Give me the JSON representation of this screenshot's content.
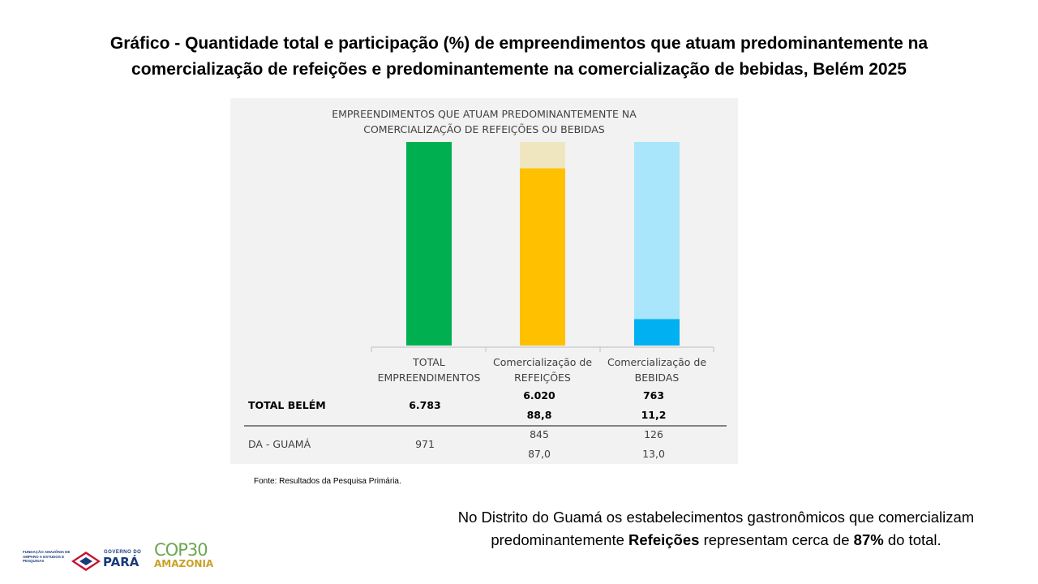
{
  "slide": {
    "title_line1": "Gráfico - Quantidade total e participação (%) de empreendimentos que atuam predominantemente na",
    "title_line2": "comercialização de refeições e predominantemente na comercialização de bebidas, Belém 2025",
    "source": "Fonte: Resultados da Pesquisa Primária.",
    "note_part1": "No Distrito do Guamá os estabelecimentos gastronômicos que comercializam predominantemente ",
    "note_bold1": "Refeições",
    "note_part2": " representam cerca de ",
    "note_bold2": "87%",
    "note_part3": " do total."
  },
  "logos": {
    "fapespa": "FUNDAÇÃO AMAZÔNIA DE AMPARO A ESTUDOS E PESQUISAS",
    "gov_label": "GOVERNO DO",
    "gov_state": "PARÁ",
    "cop_top": "COP30",
    "cop_bottom": "AMAZONIA"
  },
  "chart_data": {
    "type": "bar",
    "title_line1": "EMPREENDIMENTOS QUE ATUAM PREDOMINANTEMENTE NA",
    "title_line2": "COMERCIALIZAÇÃO DE REFEIÇÕES OU BEBIDAS",
    "categories": [
      [
        "TOTAL",
        "EMPREENDIMENTOS"
      ],
      [
        "Comercialização de",
        "REFEIÇÕES"
      ],
      [
        "Comercialização de",
        "BEBIDAS"
      ]
    ],
    "bars": [
      {
        "total": 971,
        "value": 971,
        "fill": "#00b050",
        "background": "#00b050"
      },
      {
        "total": 971,
        "value": 845,
        "fill": "#ffc000",
        "background": "#efe6c0"
      },
      {
        "total": 971,
        "value": 126,
        "fill": "#00b0f0",
        "background": "#a9e5fb"
      }
    ],
    "table": {
      "rows": [
        {
          "label": "TOTAL BELÉM",
          "bold": true,
          "cells": [
            [
              "6.783"
            ],
            [
              "6.020",
              "88,8"
            ],
            [
              "763",
              "11,2"
            ]
          ]
        },
        {
          "label": "DA - GUAMÁ",
          "bold": false,
          "cells": [
            [
              "971"
            ],
            [
              "845",
              "87,0"
            ],
            [
              "126",
              "13,0"
            ]
          ]
        }
      ]
    },
    "colors": {
      "axis": "#bfbfbf",
      "divider": "#404040",
      "text": "#404040",
      "panel": "#f2f2f2"
    }
  }
}
